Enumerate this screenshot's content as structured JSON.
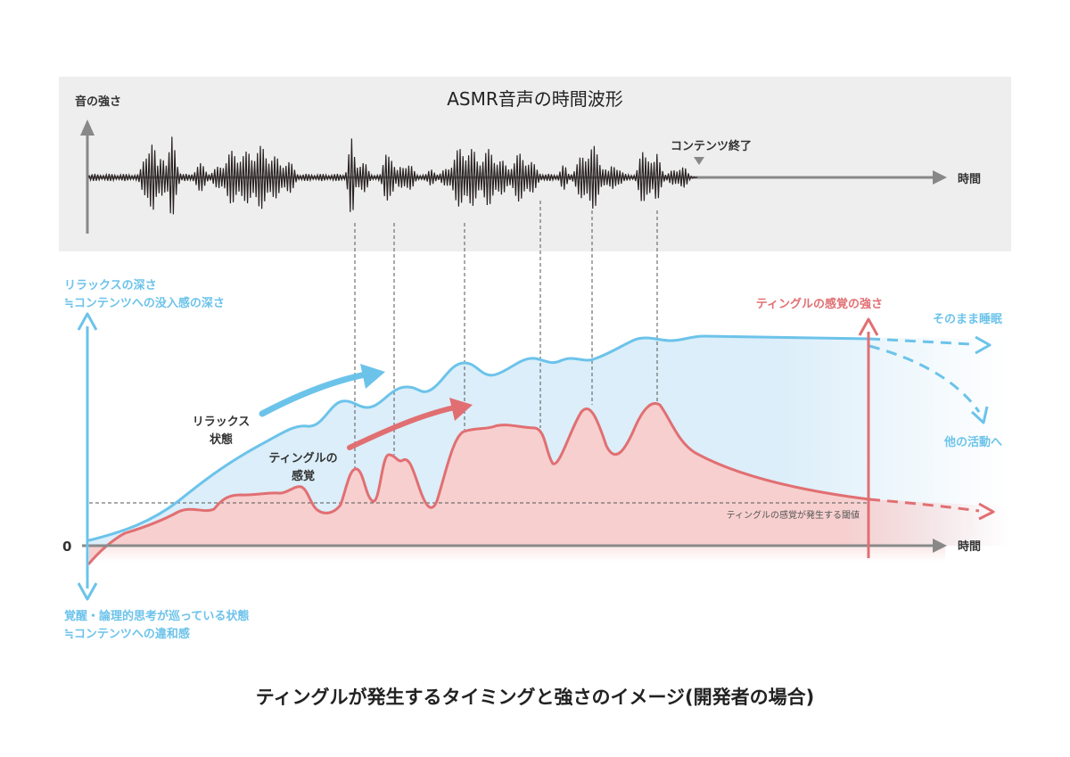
{
  "waveform_panel": {
    "title": "ASMR音声の時間波形",
    "y_label": "音の強さ",
    "x_label": "時間",
    "content_end_label": "コンテンツ終了"
  },
  "main_chart": {
    "y_label_top_line1": "リラックスの深さ",
    "y_label_top_line2": "≒コンテンツへの没入感の深さ",
    "y_label_bottom_line1": "覚醒・論理的思考が巡っている状態",
    "y_label_bottom_line2": "≒コンテンツへの違和感",
    "zero_label": "0",
    "x_label": "時間",
    "relax_label_line1": "リラックス",
    "relax_label_line2": "状態",
    "tingle_label_line1": "ティングルの",
    "tingle_label_line2": "感覚",
    "tingle_strength_label": "ティングルの感覚の強さ",
    "threshold_label": "ティングルの感覚が発生する閾値",
    "sleep_label": "そのまま睡眠",
    "other_activity_label": "他の活動へ"
  },
  "colors": {
    "blue": "#6cc3ea",
    "blue_fill": "#dbeef9",
    "red": "#e16f72",
    "red_fill": "#f7cfcf",
    "panel_bg": "#eeeeee",
    "axis_gray": "#888888"
  },
  "caption": "ティングルが発生するタイミングと強さのイメージ(開発者の場合)"
}
